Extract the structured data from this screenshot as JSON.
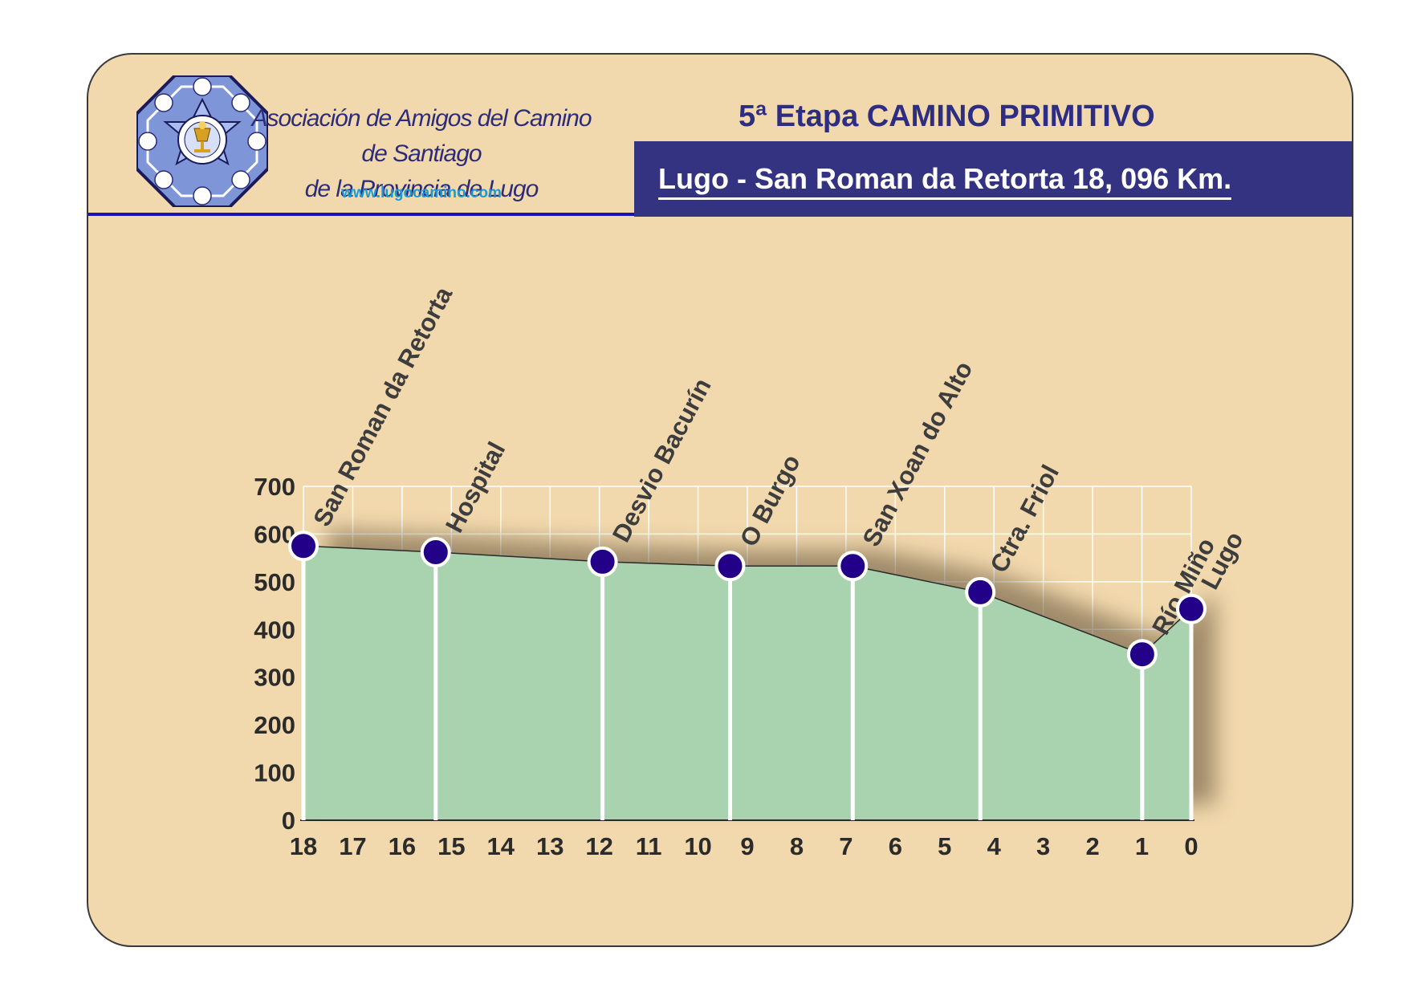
{
  "header": {
    "org_line1": "Asociación de Amigos del Camino de Santiago",
    "org_line2": "de la Provincia de Lugo",
    "url": "www.lugocamino.com",
    "stage_title": "5ª Etapa CAMINO PRIMITIVO",
    "route": "Lugo -  San Roman da Retorta  18, 096 Km."
  },
  "colors": {
    "card_bg": "#f2d9ad",
    "title_blue": "#2d2d82",
    "bar_bg": "#333382",
    "area_fill": "#a8d3ae",
    "marker_fill": "#220088",
    "url_color": "#1a9ad6"
  },
  "chart_data": {
    "type": "area",
    "x_reversed": true,
    "xlim": [
      18.096,
      0
    ],
    "ylim": [
      0,
      700
    ],
    "yticks": [
      0,
      100,
      200,
      300,
      400,
      500,
      600,
      700
    ],
    "xticks": [
      "18",
      "17",
      "16",
      "15",
      "14",
      "13",
      "12",
      "11",
      "10",
      "9",
      "8",
      "7",
      "6",
      "5",
      "4",
      "3",
      "2",
      "1",
      "0"
    ],
    "grid": true,
    "profile": [
      {
        "x": 18.096,
        "y": 575
      },
      {
        "x": 15.4,
        "y": 562
      },
      {
        "x": 12.0,
        "y": 542
      },
      {
        "x": 9.4,
        "y": 533
      },
      {
        "x": 6.9,
        "y": 533
      },
      {
        "x": 6.0,
        "y": 514
      },
      {
        "x": 4.3,
        "y": 478
      },
      {
        "x": 1.0,
        "y": 348
      },
      {
        "x": 0.0,
        "y": 443
      }
    ],
    "waypoints": [
      {
        "name": "San Roman da Retorta",
        "x": 18.096,
        "y": 575
      },
      {
        "name": "Hospital",
        "x": 15.4,
        "y": 562
      },
      {
        "name": "Desvio Bacurín",
        "x": 12.0,
        "y": 542
      },
      {
        "name": "O Burgo",
        "x": 9.4,
        "y": 533
      },
      {
        "name": "San Xoan do Alto",
        "x": 6.9,
        "y": 533
      },
      {
        "name": "Ctra. Friol",
        "x": 4.3,
        "y": 478
      },
      {
        "name": "Río Miño",
        "x": 1.0,
        "y": 348
      },
      {
        "name": "Lugo",
        "x": 0.0,
        "y": 443
      }
    ]
  }
}
